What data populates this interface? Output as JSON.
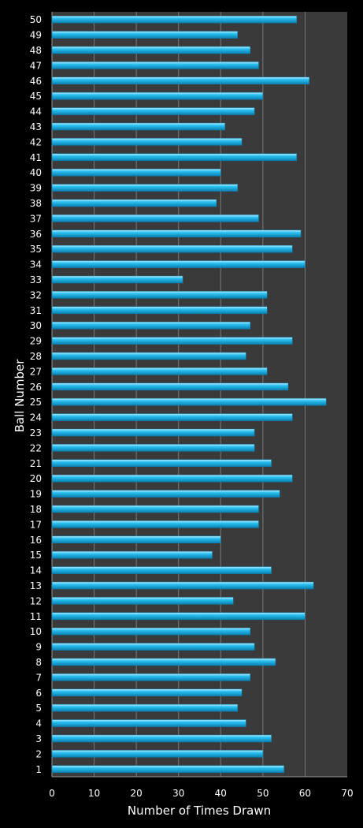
{
  "chart_data": {
    "type": "bar",
    "orientation": "horizontal",
    "title": "",
    "xlabel": "Number of Times Drawn",
    "ylabel": "Ball Number",
    "xlim": [
      0,
      70
    ],
    "xticks": [
      0,
      10,
      20,
      30,
      40,
      50,
      60,
      70
    ],
    "grid": true,
    "categories": [
      "1",
      "2",
      "3",
      "4",
      "5",
      "6",
      "7",
      "8",
      "9",
      "10",
      "11",
      "12",
      "13",
      "14",
      "15",
      "16",
      "17",
      "18",
      "19",
      "20",
      "21",
      "22",
      "23",
      "24",
      "25",
      "26",
      "27",
      "28",
      "29",
      "30",
      "31",
      "32",
      "33",
      "34",
      "35",
      "36",
      "37",
      "38",
      "39",
      "40",
      "41",
      "42",
      "43",
      "44",
      "45",
      "46",
      "47",
      "48",
      "49",
      "50"
    ],
    "values": [
      55,
      50,
      52,
      46,
      44,
      45,
      47,
      53,
      48,
      47,
      60,
      43,
      62,
      52,
      38,
      40,
      49,
      49,
      54,
      57,
      52,
      48,
      48,
      57,
      65,
      56,
      51,
      46,
      57,
      47,
      51,
      51,
      31,
      60,
      57,
      59,
      49,
      39,
      44,
      40,
      58,
      45,
      41,
      48,
      50,
      61,
      49,
      47,
      44,
      58
    ],
    "colors": {
      "bar": "#29c0f0",
      "bar_light": "#b8ecff",
      "bar_dark": "#0a7fb0",
      "plot_background": "#3a3a3a",
      "gridline": "#7a7a7a",
      "text": "#ffffff",
      "background": "#000000"
    }
  }
}
